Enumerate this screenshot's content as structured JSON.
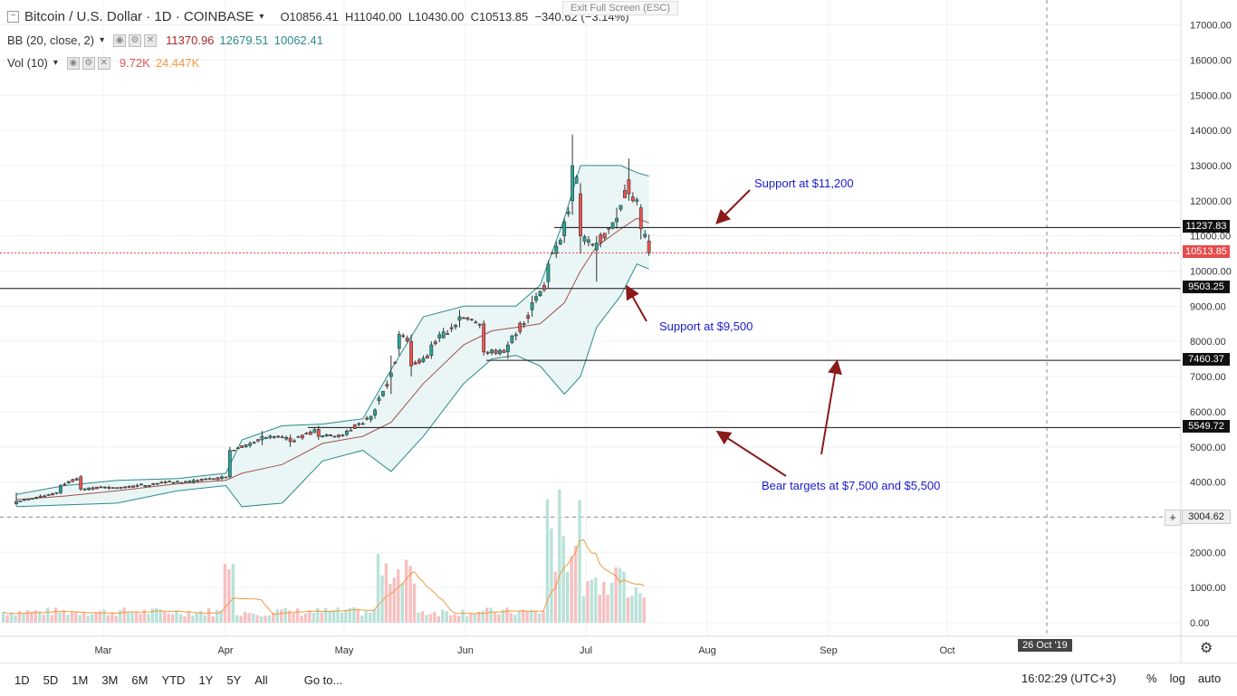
{
  "header": {
    "symbol_title": "Bitcoin / U.S. Dollar · 1D · COINBASE",
    "open": "O10856.41",
    "high": "H11040.00",
    "low": "L10430.00",
    "close": "C10513.85",
    "change": "−340.62 (−3.14%)",
    "exit_fullscreen": "Exit Full Screen (ESC)"
  },
  "indicators": {
    "bb": {
      "name": "BB (20, close, 2)",
      "v1": "11370.96",
      "v2": "12679.51",
      "v3": "10062.41"
    },
    "vol": {
      "name": "Vol (10)",
      "v1": "9.72K",
      "v2": "24.447K"
    }
  },
  "axis": {
    "price_ticks": [
      "17000.00",
      "16000.00",
      "15000.00",
      "14000.00",
      "13000.00",
      "12000.00",
      "11000.00",
      "10000.00",
      "9000.00",
      "8000.00",
      "7000.00",
      "6000.00",
      "5000.00",
      "4000.00",
      "3000.00",
      "2000.00",
      "1000.00",
      "0.00"
    ],
    "month_labels": [
      "Mar",
      "Apr",
      "May",
      "Jun",
      "Jul",
      "Aug",
      "Sep",
      "Oct",
      "26 Oct '19"
    ]
  },
  "price_labels": {
    "resistance": "11237.83",
    "last": "10513.85",
    "support1": "9503.25",
    "support2": "7460.37",
    "support3": "5549.72",
    "crosshair": "3004.62"
  },
  "annotations": {
    "support_11200": "Support at $11,200",
    "support_9500": "Support at $9,500",
    "bear_targets": "Bear targets at $7,500 and $5,500"
  },
  "bottom": {
    "timeframes": [
      "1D",
      "5D",
      "1M",
      "3M",
      "6M",
      "YTD",
      "1Y",
      "5Y",
      "All"
    ],
    "goto": "Go to...",
    "clock": "16:02:29 (UTC+3)",
    "opt_percent": "%",
    "opt_log": "log",
    "opt_auto": "auto"
  },
  "colors": {
    "up": "#26a69a",
    "down": "#ef5350",
    "bb_basis": "#a0524d",
    "bb_band": "#2a8a8a",
    "bb_fill": "#e8f4f4",
    "vol_ma": "#f39a3e",
    "annotation": "#1a1acc",
    "arrow": "#8b1a1a"
  },
  "chart_data": {
    "type": "candlestick",
    "title": "Bitcoin / U.S. Dollar · 1D · COINBASE",
    "price_range": [
      0,
      17000
    ],
    "horizontal_levels": [
      11237.83,
      9503.25,
      7460.37,
      5549.72
    ],
    "last_close": 10513.85,
    "series": [
      {
        "date": "2019-02-08",
        "o": 3380,
        "h": 3700,
        "l": 3330,
        "c": 3450
      },
      {
        "date": "2019-02-14",
        "o": 3600,
        "h": 3650,
        "l": 3550,
        "c": 3580
      },
      {
        "date": "2019-02-19",
        "o": 3700,
        "h": 3950,
        "l": 3650,
        "c": 3900
      },
      {
        "date": "2019-02-24",
        "o": 4150,
        "h": 4200,
        "l": 3750,
        "c": 3800
      },
      {
        "date": "2019-03-03",
        "o": 3850,
        "h": 3900,
        "l": 3780,
        "c": 3830
      },
      {
        "date": "2019-03-10",
        "o": 3880,
        "h": 3950,
        "l": 3850,
        "c": 3900
      },
      {
        "date": "2019-03-17",
        "o": 3990,
        "h": 4050,
        "l": 3950,
        "c": 4000
      },
      {
        "date": "2019-03-24",
        "o": 4000,
        "h": 4100,
        "l": 3950,
        "c": 4050
      },
      {
        "date": "2019-03-31",
        "o": 4100,
        "h": 4200,
        "l": 4050,
        "c": 4150
      },
      {
        "date": "2019-04-02",
        "o": 4150,
        "h": 5000,
        "l": 4100,
        "c": 4900
      },
      {
        "date": "2019-04-10",
        "o": 5200,
        "h": 5450,
        "l": 5050,
        "c": 5300
      },
      {
        "date": "2019-04-17",
        "o": 5250,
        "h": 5350,
        "l": 5000,
        "c": 5150
      },
      {
        "date": "2019-04-24",
        "o": 5500,
        "h": 5600,
        "l": 5200,
        "c": 5300
      },
      {
        "date": "2019-05-01",
        "o": 5350,
        "h": 5500,
        "l": 5300,
        "c": 5450
      },
      {
        "date": "2019-05-08",
        "o": 5900,
        "h": 6100,
        "l": 5800,
        "c": 6050
      },
      {
        "date": "2019-05-12",
        "o": 7000,
        "h": 7600,
        "l": 6500,
        "c": 7100
      },
      {
        "date": "2019-05-14",
        "o": 7800,
        "h": 8300,
        "l": 7600,
        "c": 8200
      },
      {
        "date": "2019-05-17",
        "o": 8000,
        "h": 8200,
        "l": 7000,
        "c": 7300
      },
      {
        "date": "2019-05-22",
        "o": 7600,
        "h": 8000,
        "l": 7500,
        "c": 7900
      },
      {
        "date": "2019-05-29",
        "o": 8600,
        "h": 8900,
        "l": 8400,
        "c": 8700
      },
      {
        "date": "2019-06-04",
        "o": 8500,
        "h": 8600,
        "l": 7600,
        "c": 7700
      },
      {
        "date": "2019-06-10",
        "o": 7700,
        "h": 8000,
        "l": 7500,
        "c": 7900
      },
      {
        "date": "2019-06-16",
        "o": 8900,
        "h": 9300,
        "l": 8700,
        "c": 9100
      },
      {
        "date": "2019-06-20",
        "o": 9700,
        "h": 10300,
        "l": 9500,
        "c": 10200
      },
      {
        "date": "2019-06-24",
        "o": 11000,
        "h": 11500,
        "l": 10800,
        "c": 11400
      },
      {
        "date": "2019-06-26",
        "o": 12000,
        "h": 13880,
        "l": 11600,
        "c": 13000
      },
      {
        "date": "2019-06-28",
        "o": 12200,
        "h": 12500,
        "l": 10500,
        "c": 11000
      },
      {
        "date": "2019-07-02",
        "o": 10600,
        "h": 11000,
        "l": 9700,
        "c": 10800
      },
      {
        "date": "2019-07-07",
        "o": 11400,
        "h": 11800,
        "l": 11200,
        "c": 11500
      },
      {
        "date": "2019-07-10",
        "o": 12600,
        "h": 13200,
        "l": 12000,
        "c": 12200
      },
      {
        "date": "2019-07-13",
        "o": 11800,
        "h": 11900,
        "l": 10900,
        "c": 11200
      },
      {
        "date": "2019-07-15",
        "o": 10856.41,
        "h": 11040,
        "l": 10430,
        "c": 10513.85
      }
    ],
    "volume_range": [
      0,
      4000
    ],
    "volume_note": "daily volume bars with 10-period moving average"
  }
}
